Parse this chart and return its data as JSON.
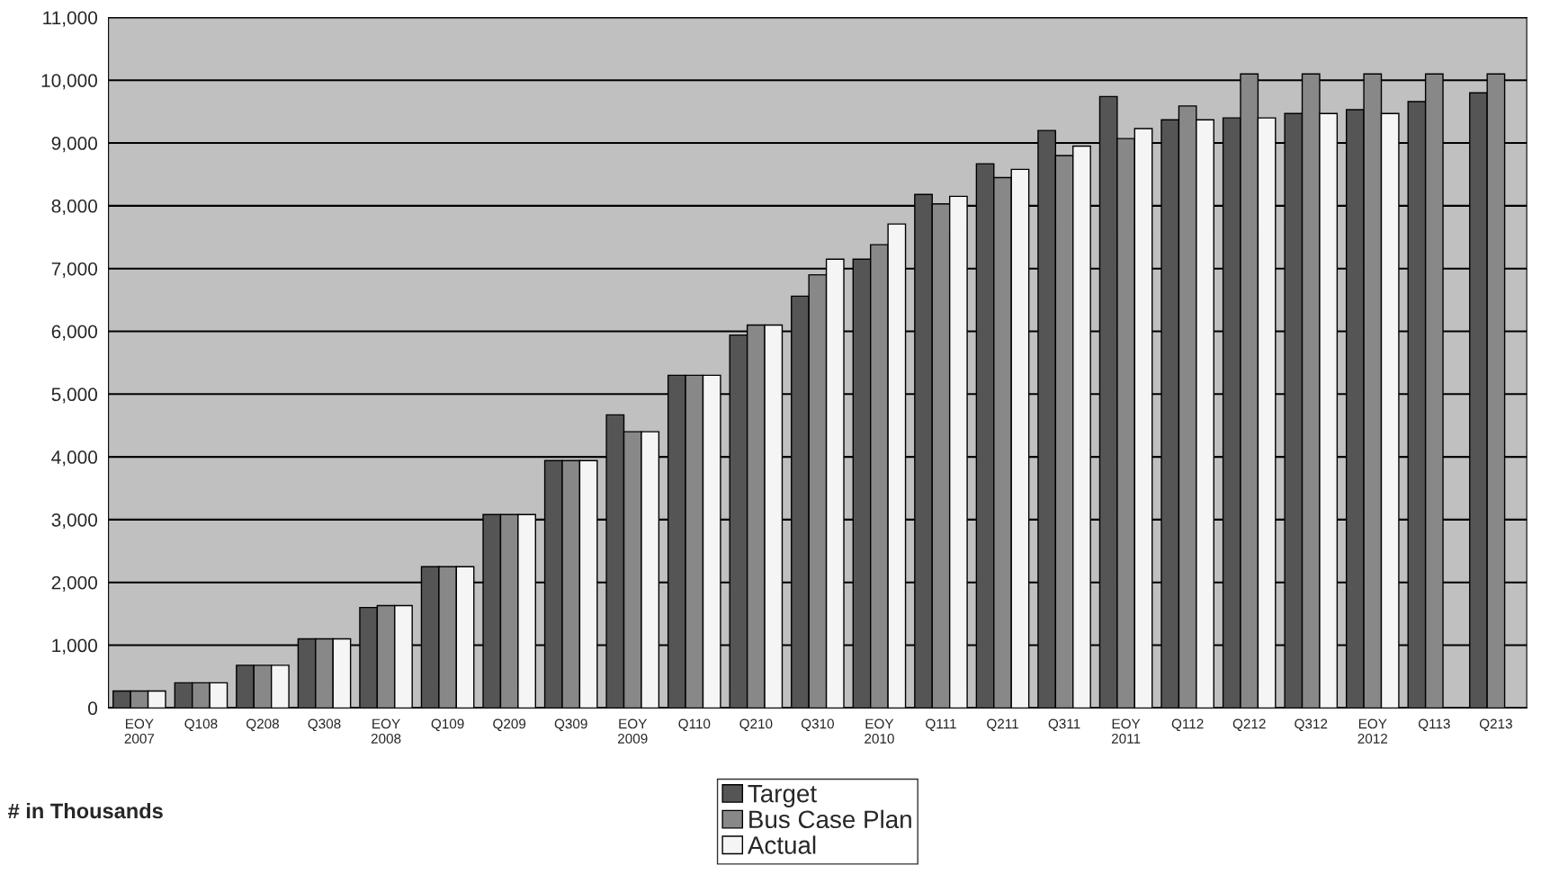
{
  "chart_data": {
    "type": "bar",
    "categories": [
      "EOY\n2007",
      "Q108",
      "Q208",
      "Q308",
      "EOY\n2008",
      "Q109",
      "Q209",
      "Q309",
      "EOY\n2009",
      "Q110",
      "Q210",
      "Q310",
      "EOY\n2010",
      "Q111",
      "Q211",
      "Q311",
      "EOY\n2011",
      "Q112",
      "Q212",
      "Q312",
      "EOY\n2012",
      "Q113",
      "Q213"
    ],
    "series": [
      {
        "name": "Target",
        "color": "#555555",
        "values": [
          270,
          400,
          680,
          1100,
          1600,
          2250,
          3080,
          3940,
          4670,
          5300,
          5940,
          6560,
          7150,
          8180,
          8670,
          9200,
          9740,
          9370,
          9400,
          9470,
          9530,
          9660,
          9800
        ]
      },
      {
        "name": "Bus Case Plan",
        "color": "#888888",
        "values": [
          270,
          400,
          680,
          1100,
          1630,
          2250,
          3080,
          3940,
          4400,
          5300,
          6100,
          6900,
          7380,
          8030,
          8450,
          8800,
          9070,
          9590,
          10100,
          10100,
          10100,
          10100,
          10100
        ]
      },
      {
        "name": "Actual",
        "color": "#f5f5f5",
        "values": [
          270,
          400,
          680,
          1100,
          1630,
          2250,
          3080,
          3940,
          4400,
          5300,
          6100,
          7150,
          7710,
          8150,
          8580,
          8950,
          9230,
          9370,
          9400,
          9470,
          9470,
          null,
          null
        ]
      }
    ],
    "ylim": [
      0,
      11000
    ],
    "yticks": [
      {
        "value": 0,
        "label": "0"
      },
      {
        "value": 1000,
        "label": "1,000"
      },
      {
        "value": 2000,
        "label": "2,000"
      },
      {
        "value": 3000,
        "label": "3,000"
      },
      {
        "value": 4000,
        "label": "4,000"
      },
      {
        "value": 5000,
        "label": "5,000"
      },
      {
        "value": 6000,
        "label": "6,000"
      },
      {
        "value": 7000,
        "label": "7,000"
      },
      {
        "value": 8000,
        "label": "8,000"
      },
      {
        "value": 9000,
        "label": "9,000"
      },
      {
        "value": 10000,
        "label": "10,000"
      },
      {
        "value": 11000,
        "label": "11,000"
      }
    ],
    "grid": "y",
    "legend": "bottom",
    "annotations": [
      "# in Thousands"
    ]
  }
}
